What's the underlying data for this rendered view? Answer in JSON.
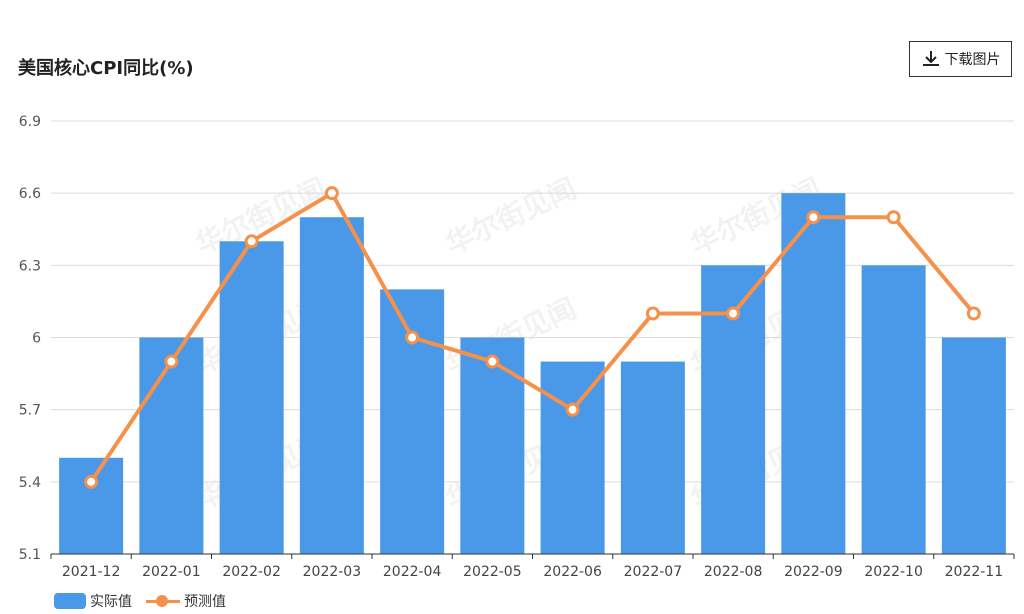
{
  "header": {
    "title": "美国核心CPI同比(%)",
    "download_label": "下载图片",
    "download_icon": "download-icon"
  },
  "watermark": "华尔街见闻",
  "colors": {
    "bar": "#4a98e8",
    "line": "#f5914a",
    "grid": "#dcdcdc",
    "axis": "#333333"
  },
  "legend": {
    "bar_label": "实际值",
    "line_label": "预测值"
  },
  "chart_data": {
    "type": "bar",
    "title": "美国核心CPI同比(%)",
    "categories": [
      "2021-12",
      "2022-01",
      "2022-02",
      "2022-03",
      "2022-04",
      "2022-05",
      "2022-06",
      "2022-07",
      "2022-08",
      "2022-09",
      "2022-10",
      "2022-11"
    ],
    "series": [
      {
        "name": "实际值",
        "type": "bar",
        "values": [
          5.5,
          6.0,
          6.4,
          6.5,
          6.2,
          6.0,
          5.9,
          5.9,
          6.3,
          6.6,
          6.3,
          6.0
        ]
      },
      {
        "name": "预测值",
        "type": "line",
        "values": [
          5.4,
          5.9,
          6.4,
          6.6,
          6.0,
          5.9,
          5.7,
          6.1,
          6.1,
          6.5,
          6.5,
          6.1
        ]
      }
    ],
    "ylim": [
      5.1,
      6.9
    ],
    "yticks": [
      5.1,
      5.4,
      5.7,
      6,
      6.3,
      6.6,
      6.9
    ],
    "xlabel": "",
    "ylabel": "",
    "grid": true,
    "legend_position": "bottom-left"
  }
}
